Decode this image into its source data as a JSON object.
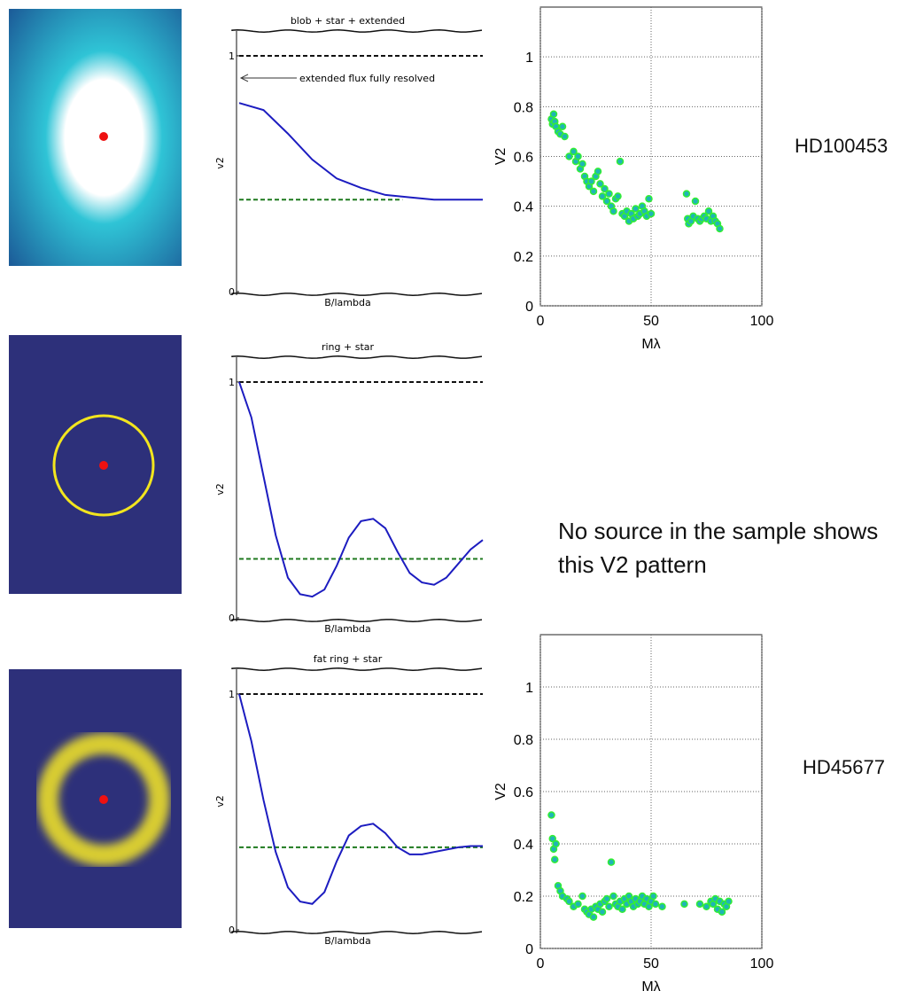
{
  "chart_data": [
    {
      "type": "line",
      "title": "blob + star + extended",
      "ylabel": "v2",
      "xlabel": "B/lambda",
      "annotation": "extended flux fully resolved",
      "xlim": [
        0,
        1
      ],
      "ylim": [
        0,
        1.09
      ],
      "yticks": [
        0,
        1
      ],
      "x": [
        0,
        0.1,
        0.2,
        0.3,
        0.4,
        0.5,
        0.6,
        0.7,
        0.8,
        0.9,
        1.0
      ],
      "series": [
        {
          "color": "#1c1cc0",
          "values": [
            0.8,
            0.77,
            0.67,
            0.56,
            0.48,
            0.44,
            0.41,
            0.4,
            0.39,
            0.39,
            0.39
          ]
        }
      ],
      "reference_lines": [
        {
          "value": 1,
          "color": "#111111",
          "x_end": 1
        },
        {
          "value": 0.39,
          "color": "#1f7a1f",
          "x_end": 0.67
        }
      ]
    },
    {
      "type": "scatter",
      "ylabel": "V2",
      "xlabel": "Mλ",
      "xlim": [
        0,
        100
      ],
      "ylim": [
        0,
        1.2
      ],
      "xticks": [
        0,
        50,
        100
      ],
      "yticks": [
        0,
        0.2,
        0.4,
        0.6,
        0.8,
        1
      ],
      "grid": true,
      "color": "#1fb5b5",
      "edge_color": "#33ee33",
      "x": [
        5,
        5.5,
        6,
        6.5,
        7,
        8,
        9,
        10,
        11,
        13,
        15,
        16,
        17,
        18,
        19,
        20,
        21,
        22,
        23,
        24,
        25,
        26,
        27,
        28,
        29,
        30,
        31,
        32,
        33,
        34,
        35,
        36,
        37,
        38,
        39,
        40,
        41,
        42,
        43,
        44,
        45,
        46,
        47,
        48,
        49,
        50,
        66,
        66.5,
        67,
        68,
        69,
        70,
        71,
        72,
        73,
        74,
        75,
        76,
        77,
        78,
        79,
        80,
        81
      ],
      "values": [
        0.75,
        0.73,
        0.77,
        0.74,
        0.72,
        0.7,
        0.69,
        0.72,
        0.68,
        0.6,
        0.62,
        0.58,
        0.6,
        0.55,
        0.57,
        0.52,
        0.5,
        0.48,
        0.5,
        0.46,
        0.52,
        0.54,
        0.49,
        0.44,
        0.47,
        0.42,
        0.45,
        0.4,
        0.38,
        0.43,
        0.44,
        0.58,
        0.37,
        0.36,
        0.38,
        0.34,
        0.37,
        0.35,
        0.39,
        0.36,
        0.37,
        0.4,
        0.38,
        0.36,
        0.43,
        0.37,
        0.45,
        0.35,
        0.33,
        0.34,
        0.36,
        0.42,
        0.35,
        0.34,
        0.35,
        0.36,
        0.35,
        0.38,
        0.34,
        0.36,
        0.34,
        0.33,
        0.31
      ]
    },
    {
      "type": "line",
      "title": "ring + star",
      "ylabel": "v2",
      "xlabel": "B/lambda",
      "xlim": [
        0,
        1
      ],
      "ylim": [
        0,
        1.09
      ],
      "yticks": [
        0,
        1
      ],
      "x": [
        0,
        0.05,
        0.1,
        0.15,
        0.2,
        0.25,
        0.3,
        0.35,
        0.4,
        0.45,
        0.5,
        0.55,
        0.6,
        0.65,
        0.7,
        0.75,
        0.8,
        0.85,
        0.9,
        0.95,
        1.0
      ],
      "series": [
        {
          "color": "#1c1cc0",
          "values": [
            1.0,
            0.85,
            0.6,
            0.35,
            0.17,
            0.1,
            0.09,
            0.12,
            0.22,
            0.34,
            0.41,
            0.42,
            0.38,
            0.28,
            0.19,
            0.15,
            0.14,
            0.17,
            0.23,
            0.29,
            0.33
          ]
        }
      ],
      "reference_lines": [
        {
          "value": 1,
          "color": "#111111",
          "x_end": 1
        },
        {
          "value": 0.25,
          "color": "#1f7a1f",
          "x_end": 1
        }
      ]
    },
    {
      "type": "line",
      "title": "fat ring + star",
      "ylabel": "v2",
      "xlabel": "B/lambda",
      "xlim": [
        0,
        1
      ],
      "ylim": [
        0,
        1.09
      ],
      "yticks": [
        0,
        1
      ],
      "x": [
        0,
        0.05,
        0.1,
        0.15,
        0.2,
        0.25,
        0.3,
        0.35,
        0.4,
        0.45,
        0.5,
        0.55,
        0.6,
        0.65,
        0.7,
        0.75,
        0.8,
        0.85,
        0.9,
        0.95,
        1.0
      ],
      "series": [
        {
          "color": "#1c1cc0",
          "values": [
            1.0,
            0.8,
            0.55,
            0.33,
            0.18,
            0.12,
            0.11,
            0.16,
            0.29,
            0.4,
            0.44,
            0.45,
            0.41,
            0.35,
            0.32,
            0.32,
            0.33,
            0.34,
            0.35,
            0.355,
            0.355
          ]
        }
      ],
      "reference_lines": [
        {
          "value": 1,
          "color": "#111111",
          "x_end": 1
        },
        {
          "value": 0.35,
          "color": "#1f7a1f",
          "x_end": 1
        }
      ]
    },
    {
      "type": "scatter",
      "ylabel": "V2",
      "xlabel": "Mλ",
      "xlim": [
        0,
        100
      ],
      "ylim": [
        0,
        1.2
      ],
      "xticks": [
        0,
        50,
        100
      ],
      "yticks": [
        0,
        0.2,
        0.4,
        0.6,
        0.8,
        1
      ],
      "grid": true,
      "color": "#1fb5b5",
      "edge_color": "#33ee33",
      "x": [
        5,
        5.5,
        6,
        6.5,
        7,
        8,
        9,
        10,
        12,
        13,
        15,
        17,
        19,
        20,
        21,
        22,
        23,
        24,
        25,
        26,
        27,
        28,
        29,
        30,
        31,
        32,
        33,
        34,
        35,
        36,
        37,
        38,
        39,
        40,
        41,
        42,
        43,
        44,
        45,
        46,
        47,
        48,
        49,
        50,
        51,
        52,
        55,
        65,
        72,
        75,
        77,
        78,
        79,
        80,
        81,
        82,
        83,
        84,
        85
      ],
      "values": [
        0.51,
        0.42,
        0.38,
        0.34,
        0.4,
        0.24,
        0.22,
        0.2,
        0.19,
        0.18,
        0.16,
        0.17,
        0.2,
        0.15,
        0.14,
        0.13,
        0.15,
        0.12,
        0.16,
        0.15,
        0.17,
        0.14,
        0.18,
        0.19,
        0.16,
        0.33,
        0.2,
        0.17,
        0.16,
        0.18,
        0.15,
        0.19,
        0.17,
        0.2,
        0.18,
        0.16,
        0.19,
        0.17,
        0.18,
        0.2,
        0.17,
        0.19,
        0.16,
        0.18,
        0.2,
        0.17,
        0.16,
        0.17,
        0.17,
        0.16,
        0.18,
        0.17,
        0.19,
        0.15,
        0.18,
        0.14,
        0.17,
        0.16,
        0.18
      ]
    }
  ],
  "source_labels": [
    "HD100453",
    "HD45677"
  ],
  "note": "No source in the sample shows this V2 pattern"
}
